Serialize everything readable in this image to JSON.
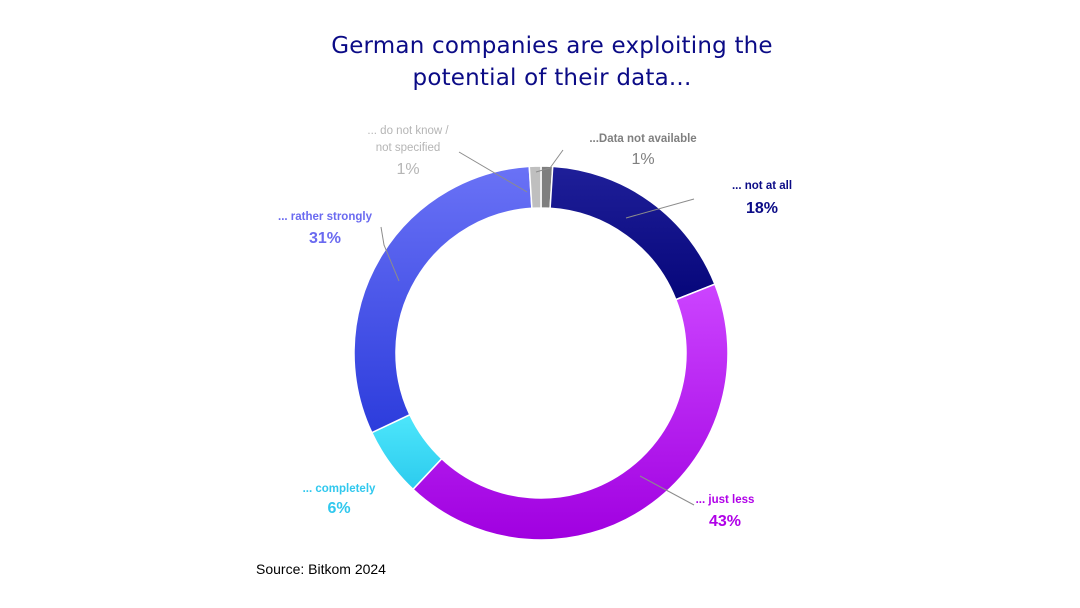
{
  "chart_data": {
    "type": "pie",
    "variant": "donut",
    "title_lines": [
      "German companies are exploiting the",
      "potential of their data..."
    ],
    "slices": [
      {
        "label": "...Data not available",
        "value": 1,
        "display": "1%",
        "color": "#7f7f7f",
        "label_color": "#7f7f7f"
      },
      {
        "label": "... not at all",
        "value": 18,
        "display": "18%",
        "color": "#10108c",
        "label_color": "#0b0b86"
      },
      {
        "label": "... just less",
        "value": 43,
        "display": "43%",
        "color": "#b000e8",
        "label_color": "#b000e8"
      },
      {
        "label": "... completely",
        "value": 6,
        "display": "6%",
        "color": "#40dcf6",
        "label_color": "#30c8ee"
      },
      {
        "label": "... rather strongly",
        "value": 31,
        "display": "31%",
        "color": "#4a55f0",
        "label_color": "#6a6af0"
      },
      {
        "label": "... do not know / not specified",
        "label_lines": [
          "... do not know /",
          "not specified"
        ],
        "value": 1,
        "display": "1%",
        "color": "#bfbfbf",
        "label_color": "#b5b5b5"
      }
    ]
  },
  "source": "Source: Bitkom 2024"
}
